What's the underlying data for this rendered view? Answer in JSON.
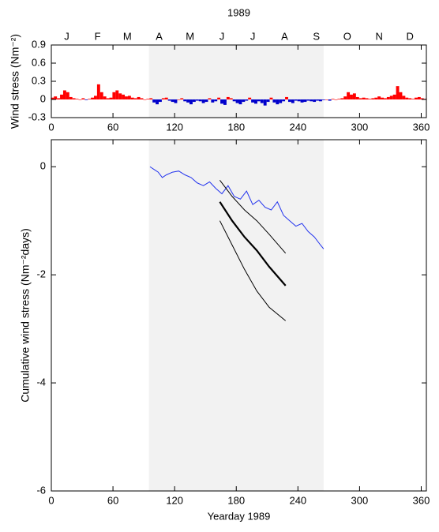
{
  "chart_data": [
    {
      "type": "bar",
      "title": "1989",
      "ylabel": "Wind stress (Nm⁻²)",
      "month_ticks": [
        {
          "value": 15,
          "label": "J"
        },
        {
          "value": 45,
          "label": "F"
        },
        {
          "value": 74,
          "label": "M"
        },
        {
          "value": 105,
          "label": "A"
        },
        {
          "value": 135,
          "label": "M"
        },
        {
          "value": 166,
          "label": "J"
        },
        {
          "value": 196,
          "label": "J"
        },
        {
          "value": 227,
          "label": "A"
        },
        {
          "value": 258,
          "label": "S"
        },
        {
          "value": 288,
          "label": "O"
        },
        {
          "value": 319,
          "label": "N"
        },
        {
          "value": 349,
          "label": "D"
        }
      ],
      "x": [
        1,
        4,
        7,
        10,
        13,
        16,
        19,
        22,
        25,
        28,
        31,
        34,
        37,
        40,
        43,
        46,
        49,
        52,
        55,
        58,
        61,
        64,
        67,
        70,
        73,
        76,
        79,
        82,
        85,
        88,
        91,
        94,
        97,
        100,
        103,
        106,
        109,
        112,
        115,
        118,
        121,
        124,
        127,
        130,
        133,
        136,
        139,
        142,
        145,
        148,
        151,
        154,
        157,
        160,
        163,
        166,
        169,
        172,
        175,
        178,
        181,
        184,
        187,
        190,
        193,
        196,
        199,
        202,
        205,
        208,
        211,
        214,
        217,
        220,
        223,
        226,
        229,
        232,
        235,
        238,
        241,
        244,
        247,
        250,
        253,
        256,
        259,
        262,
        265,
        268,
        271,
        274,
        277,
        280,
        283,
        286,
        289,
        292,
        295,
        298,
        301,
        304,
        307,
        310,
        313,
        316,
        319,
        322,
        325,
        328,
        331,
        334,
        337,
        340,
        343,
        346,
        349,
        352,
        355,
        358,
        361,
        364
      ],
      "values": [
        0.03,
        0.05,
        0.02,
        0.08,
        0.15,
        0.12,
        0.04,
        0.02,
        0.01,
        0.0,
        0.02,
        -0.01,
        0.01,
        0.03,
        0.06,
        0.25,
        0.12,
        0.05,
        0.02,
        0.03,
        0.12,
        0.15,
        0.1,
        0.08,
        0.05,
        0.06,
        0.03,
        0.02,
        0.04,
        0.02,
        0.0,
        0.01,
        0.02,
        -0.05,
        -0.08,
        -0.04,
        0.02,
        0.03,
        -0.02,
        -0.04,
        -0.06,
        0.0,
        0.02,
        -0.03,
        -0.05,
        -0.08,
        -0.04,
        -0.02,
        -0.03,
        -0.06,
        -0.04,
        0.02,
        -0.05,
        -0.03,
        0.03,
        -0.07,
        -0.09,
        0.04,
        0.02,
        -0.03,
        -0.06,
        -0.08,
        -0.04,
        -0.02,
        0.03,
        -0.05,
        -0.07,
        -0.03,
        -0.06,
        -0.1,
        -0.04,
        0.03,
        -0.05,
        -0.08,
        -0.06,
        -0.03,
        0.04,
        -0.04,
        -0.06,
        -0.02,
        -0.03,
        -0.05,
        -0.04,
        -0.02,
        -0.03,
        -0.04,
        -0.02,
        -0.03,
        -0.01,
        0.0,
        -0.02,
        0.01,
        0.0,
        0.01,
        0.02,
        0.05,
        0.12,
        0.08,
        0.1,
        0.04,
        0.02,
        0.03,
        0.02,
        0.01,
        0.02,
        0.03,
        0.05,
        0.03,
        0.02,
        0.04,
        0.06,
        0.08,
        0.22,
        0.12,
        0.06,
        0.03,
        0.02,
        0.01,
        0.03,
        0.04,
        0.02,
        0.01
      ],
      "positive_color": "#ff0000",
      "negative_color": "#0000cc",
      "bar_width": 3,
      "shade": [
        95,
        265
      ],
      "shade_color": "#f2f2f2",
      "xlim": [
        0,
        365
      ],
      "xticks": [
        0,
        60,
        120,
        180,
        240,
        300,
        360
      ],
      "ylim": [
        -0.3,
        0.9
      ],
      "yticks": [
        -0.3,
        0,
        0.3,
        0.6,
        0.9
      ]
    },
    {
      "type": "line",
      "xlabel": "Yearday 1989",
      "ylabel": "Cumulative wind stress (Nm⁻²days)",
      "shade": [
        95,
        265
      ],
      "shade_color": "#f2f2f2",
      "xlim": [
        0,
        365
      ],
      "xticks": [
        0,
        60,
        120,
        180,
        240,
        300,
        360
      ],
      "ylim": [
        -6,
        0.5
      ],
      "yticks": [
        0,
        -2,
        -4,
        -6
      ],
      "series": [
        {
          "color": "#2233ee",
          "width": 1,
          "x": [
            96,
            100,
            104,
            108,
            112,
            118,
            124,
            130,
            136,
            142,
            148,
            154,
            160,
            166,
            172,
            178,
            184,
            190,
            196,
            202,
            208,
            214,
            220,
            226,
            232,
            238,
            244,
            250,
            256,
            262,
            265
          ],
          "values": [
            0,
            -0.05,
            -0.1,
            -0.2,
            -0.15,
            -0.1,
            -0.08,
            -0.15,
            -0.2,
            -0.3,
            -0.35,
            -0.28,
            -0.4,
            -0.5,
            -0.35,
            -0.55,
            -0.6,
            -0.45,
            -0.7,
            -0.62,
            -0.75,
            -0.8,
            -0.65,
            -0.9,
            -1.0,
            -1.1,
            -1.05,
            -1.2,
            -1.3,
            -1.45,
            -1.52
          ]
        },
        {
          "color": "#000000",
          "width": 1,
          "x": [
            164,
            176,
            188,
            200,
            212,
            228
          ],
          "values": [
            -0.25,
            -0.55,
            -0.8,
            -1.0,
            -1.25,
            -1.6
          ]
        },
        {
          "color": "#000000",
          "width": 2.2,
          "x": [
            164,
            176,
            188,
            200,
            212,
            228
          ],
          "values": [
            -0.65,
            -1.0,
            -1.3,
            -1.55,
            -1.85,
            -2.2
          ]
        },
        {
          "color": "#000000",
          "width": 1,
          "x": [
            164,
            176,
            188,
            200,
            212,
            228
          ],
          "values": [
            -1.0,
            -1.45,
            -1.9,
            -2.3,
            -2.6,
            -2.85
          ]
        }
      ]
    }
  ]
}
